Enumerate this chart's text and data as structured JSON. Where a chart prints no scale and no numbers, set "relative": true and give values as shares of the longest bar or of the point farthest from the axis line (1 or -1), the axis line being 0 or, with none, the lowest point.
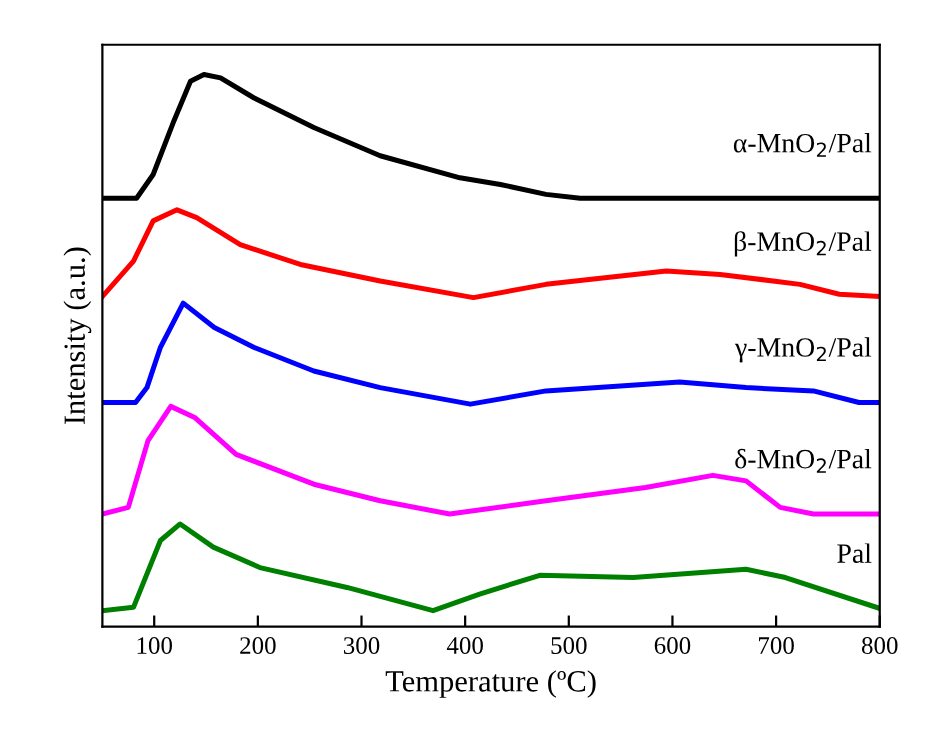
{
  "chart_data": {
    "type": "line",
    "relative": true,
    "xlabel": "Temperature (ºC)",
    "ylabel": "Intensity (a.u.)",
    "xlim": [
      50,
      800
    ],
    "xticks": [
      100,
      200,
      300,
      400,
      500,
      600,
      700,
      800
    ],
    "grid": false,
    "legend": false,
    "marker": "none",
    "line_style": "solid",
    "series": [
      {
        "name": "α-MnO$_{2}$/Pal",
        "color": "#000000",
        "x": [
          50,
          83,
          99,
          119,
          135,
          148,
          164,
          196,
          254,
          318,
          395,
          434,
          478,
          511,
          800
        ],
        "values": [
          0.776,
          0.776,
          0.819,
          0.916,
          0.988,
          1.0,
          0.994,
          0.958,
          0.904,
          0.853,
          0.813,
          0.801,
          0.783,
          0.776,
          0.776
        ]
      },
      {
        "name": "β-MnO$_{2}$/Pal",
        "color": "#ff0000",
        "x": [
          50,
          80,
          99,
          122,
          141,
          183,
          241,
          318,
          408,
          478,
          594,
          646,
          723,
          761,
          800
        ],
        "values": [
          0.598,
          0.662,
          0.735,
          0.755,
          0.741,
          0.692,
          0.656,
          0.626,
          0.596,
          0.62,
          0.644,
          0.638,
          0.62,
          0.602,
          0.598
        ]
      },
      {
        "name": "γ-MnO$_{2}$/Pal",
        "color": "#0000ff",
        "x": [
          50,
          82,
          93,
          106,
          128,
          158,
          196,
          254,
          318,
          405,
          478,
          607,
          671,
          736,
          780,
          800
        ],
        "values": [
          0.406,
          0.406,
          0.433,
          0.506,
          0.586,
          0.542,
          0.506,
          0.463,
          0.433,
          0.403,
          0.427,
          0.443,
          0.433,
          0.427,
          0.406,
          0.406
        ]
      },
      {
        "name": "δ-MnO$_{2}$/Pal",
        "color": "#ff00ff",
        "x": [
          50,
          75,
          94,
          116,
          139,
          179,
          254,
          318,
          385,
          478,
          574,
          639,
          671,
          704,
          736,
          800
        ],
        "values": [
          0.204,
          0.216,
          0.337,
          0.399,
          0.379,
          0.312,
          0.258,
          0.228,
          0.204,
          0.228,
          0.252,
          0.274,
          0.264,
          0.216,
          0.204,
          0.204
        ]
      },
      {
        "name": "Pal",
        "color": "#008000",
        "x": [
          50,
          80,
          106,
          125,
          157,
          202,
          286,
          369,
          414,
          472,
          562,
          671,
          709,
          800
        ],
        "values": [
          0.029,
          0.035,
          0.156,
          0.186,
          0.144,
          0.107,
          0.071,
          0.029,
          0.059,
          0.093,
          0.089,
          0.104,
          0.089,
          0.033
        ]
      }
    ]
  }
}
